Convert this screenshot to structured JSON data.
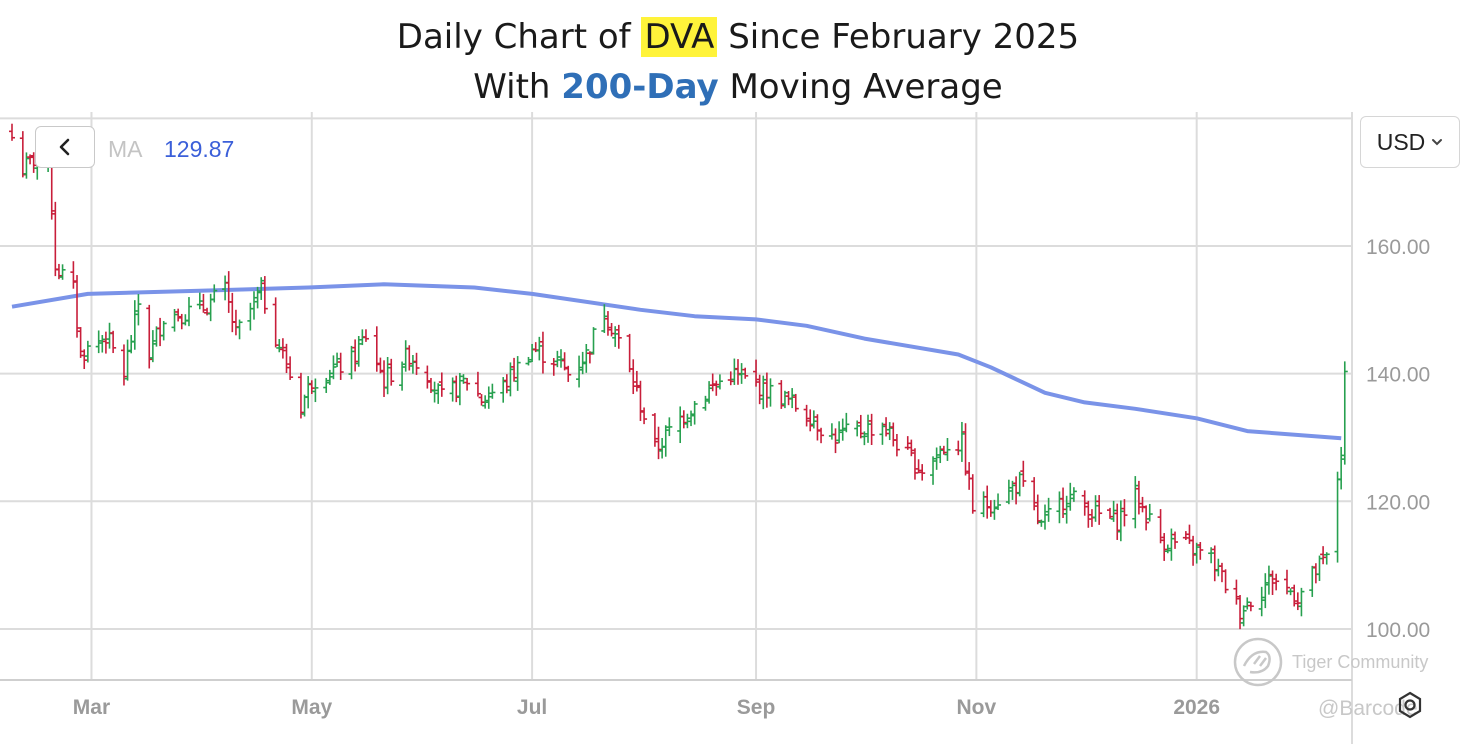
{
  "title": {
    "line1_prefix": "Daily Chart of ",
    "ticker": "DVA",
    "line1_suffix": " Since February 2025",
    "line2_prefix": "With ",
    "ma_highlight": "200-Day",
    "line2_suffix": " Moving Average"
  },
  "toolbar": {
    "back_icon": "chevron-left-icon",
    "ma_label": "MA",
    "ma_value": "129.87",
    "currency": "USD",
    "currency_icon": "chevron-down-icon"
  },
  "watermark": {
    "brand": "Tiger Community",
    "handle": "@Barcode"
  },
  "colors": {
    "up": "#27a04f",
    "down": "#c81e3a",
    "ma": "#7a93e8",
    "grid": "#dcdcdc",
    "title_highlight": "#fff33a",
    "title_accent": "#2f6fb7"
  },
  "chart_data": {
    "type": "ohlc",
    "x_axis": {
      "range": [
        "2025-02-07",
        "2026-02-13"
      ],
      "tick_labels": [
        {
          "label": "Mar",
          "date": "2025-03-01"
        },
        {
          "label": "May",
          "date": "2025-05-01"
        },
        {
          "label": "Jul",
          "date": "2025-07-01"
        },
        {
          "label": "Sep",
          "date": "2025-09-01"
        },
        {
          "label": "Nov",
          "date": "2025-11-01"
        },
        {
          "label": "2026",
          "date": "2026-01-01"
        }
      ]
    },
    "y_axis": {
      "ylim": [
        92,
        181
      ],
      "ticks": [
        100,
        120,
        140,
        160
      ],
      "tick_labels": [
        "100.00",
        "120.00",
        "140.00",
        "160.00"
      ],
      "position": "right"
    },
    "grid": true,
    "moving_average": {
      "period": "200-Day",
      "last_value": 129.87,
      "points": [
        [
          "2025-02-07",
          150.5
        ],
        [
          "2025-02-28",
          152.5
        ],
        [
          "2025-03-31",
          153.0
        ],
        [
          "2025-04-30",
          153.5
        ],
        [
          "2025-05-21",
          154.0
        ],
        [
          "2025-06-15",
          153.5
        ],
        [
          "2025-07-01",
          152.5
        ],
        [
          "2025-07-31",
          150.0
        ],
        [
          "2025-08-15",
          149.0
        ],
        [
          "2025-09-01",
          148.5
        ],
        [
          "2025-09-15",
          147.5
        ],
        [
          "2025-10-01",
          145.5
        ],
        [
          "2025-10-27",
          143.0
        ],
        [
          "2025-11-05",
          141.0
        ],
        [
          "2025-11-20",
          137.0
        ],
        [
          "2025-12-01",
          135.5
        ],
        [
          "2025-12-15",
          134.5
        ],
        [
          "2026-01-01",
          133.0
        ],
        [
          "2026-01-15",
          131.0
        ],
        [
          "2026-02-10",
          129.87
        ]
      ]
    },
    "close_path": [
      [
        "2025-02-07",
        177
      ],
      [
        "2025-02-10",
        172
      ],
      [
        "2025-02-14",
        174
      ],
      [
        "2025-02-17",
        176
      ],
      [
        "2025-02-19",
        157
      ],
      [
        "2025-02-24",
        153
      ],
      [
        "2025-02-26",
        143
      ],
      [
        "2025-03-05",
        146
      ],
      [
        "2025-03-10",
        140
      ],
      [
        "2025-03-14",
        151
      ],
      [
        "2025-03-17",
        143
      ],
      [
        "2025-03-21",
        149
      ],
      [
        "2025-03-31",
        150
      ],
      [
        "2025-04-07",
        153
      ],
      [
        "2025-04-10",
        146
      ],
      [
        "2025-04-17",
        153
      ],
      [
        "2025-04-21",
        146
      ],
      [
        "2025-04-28",
        135
      ],
      [
        "2025-05-01",
        139
      ],
      [
        "2025-05-12",
        142
      ],
      [
        "2025-05-16",
        146
      ],
      [
        "2025-05-21",
        139
      ],
      [
        "2025-05-28",
        143
      ],
      [
        "2025-06-02",
        140
      ],
      [
        "2025-06-06",
        136
      ],
      [
        "2025-06-13",
        139
      ],
      [
        "2025-06-17",
        136
      ],
      [
        "2025-06-23",
        138
      ],
      [
        "2025-06-27",
        141
      ],
      [
        "2025-07-01",
        144
      ],
      [
        "2025-07-08",
        142
      ],
      [
        "2025-07-11",
        140
      ],
      [
        "2025-07-16",
        143
      ],
      [
        "2025-07-21",
        150
      ],
      [
        "2025-07-25",
        145
      ],
      [
        "2025-07-30",
        137
      ],
      [
        "2025-08-04",
        128
      ],
      [
        "2025-08-11",
        133
      ],
      [
        "2025-08-18",
        137
      ],
      [
        "2025-08-25",
        140
      ],
      [
        "2025-09-02",
        138
      ],
      [
        "2025-09-09",
        136
      ],
      [
        "2025-09-15",
        134
      ],
      [
        "2025-09-22",
        130
      ],
      [
        "2025-09-29",
        131
      ],
      [
        "2025-10-06",
        132
      ],
      [
        "2025-10-13",
        127
      ],
      [
        "2025-10-17",
        125
      ],
      [
        "2025-10-24",
        129
      ],
      [
        "2025-10-28",
        129
      ],
      [
        "2025-10-31",
        119
      ],
      [
        "2025-11-06",
        120
      ],
      [
        "2025-11-13",
        123
      ],
      [
        "2025-11-19",
        116
      ],
      [
        "2025-11-26",
        121
      ],
      [
        "2025-12-04",
        118
      ],
      [
        "2025-12-10",
        117
      ],
      [
        "2025-12-15",
        121
      ],
      [
        "2025-12-22",
        114
      ],
      [
        "2025-12-29",
        113
      ],
      [
        "2026-01-05",
        111
      ],
      [
        "2026-01-13",
        103
      ],
      [
        "2026-01-22",
        108
      ],
      [
        "2026-01-29",
        105
      ],
      [
        "2026-02-03",
        109
      ],
      [
        "2026-02-06",
        111
      ],
      [
        "2026-02-10",
        128
      ],
      [
        "2026-02-11",
        139
      ]
    ]
  }
}
